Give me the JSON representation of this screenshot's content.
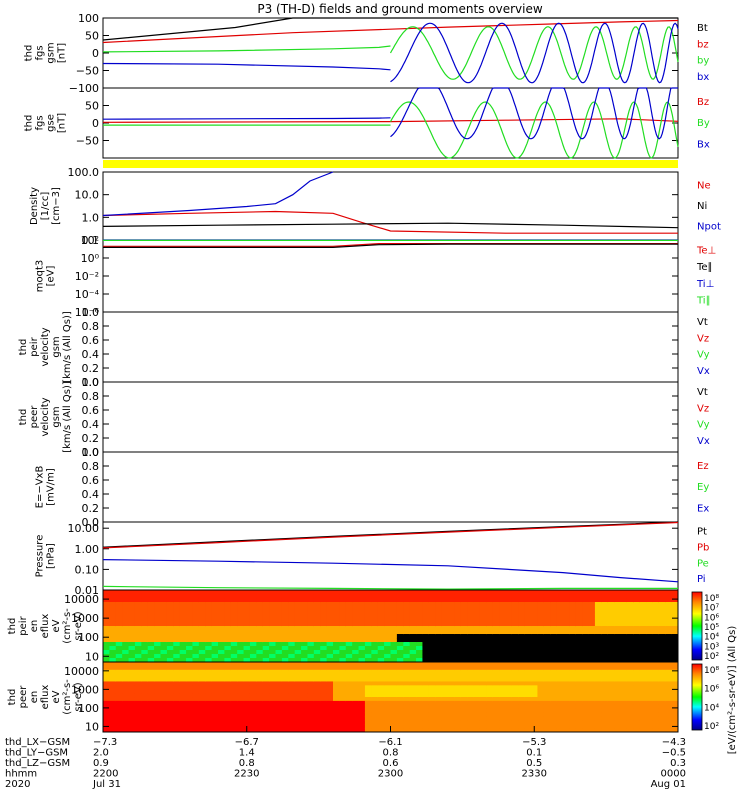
{
  "title": "P3 (TH-D) fields and ground moments overview",
  "colors": {
    "black": "#000000",
    "red": "#e00000",
    "green": "#22dd22",
    "blue": "#0000cc",
    "yellow": "#ffff00"
  },
  "chart_data": [
    {
      "panel": "fgs_gsm",
      "type": "line",
      "ylabel": [
        "thd",
        "fgs",
        "gsm",
        "[nT]"
      ],
      "ylim": [
        -100,
        100
      ],
      "scale": "linear",
      "ticks": [
        {
          "v": 100,
          "label": "100"
        },
        {
          "v": 50,
          "label": "50"
        },
        {
          "v": 0,
          "label": "0"
        },
        {
          "v": -50,
          "label": "−50"
        },
        {
          "v": -100,
          "label": "−100"
        }
      ],
      "legend": [
        {
          "label": "Bt",
          "color": "#000000"
        },
        {
          "label": "bz",
          "color": "#e00000"
        },
        {
          "label": "by",
          "color": "#22dd22"
        },
        {
          "label": "bx",
          "color": "#0000cc"
        }
      ],
      "series": [
        {
          "name": "Bt",
          "color": "#000000",
          "x": [
            0,
            0.23,
            0.33,
            1
          ],
          "y": [
            37,
            73,
            104,
            104
          ]
        },
        {
          "name": "bz",
          "color": "#e00000",
          "x": [
            0,
            0.33,
            0.5,
            0.6,
            0.7,
            0.8,
            0.9,
            1
          ],
          "y": [
            30,
            58,
            68,
            74,
            79,
            84,
            89,
            93
          ]
        },
        {
          "name": "by",
          "color": "#22dd22",
          "x": [
            0,
            0.2,
            0.4,
            0.48,
            0.5
          ],
          "y": [
            3,
            6,
            12,
            16,
            20
          ]
        },
        {
          "name": "bx",
          "color": "#0000cc",
          "x": [
            0,
            0.2,
            0.4,
            0.48,
            0.5
          ],
          "y": [
            -30,
            -32,
            -40,
            -45,
            -48
          ]
        }
      ]
    },
    {
      "panel": "fgs_gse",
      "type": "line",
      "ylabel": [
        "thd",
        "fgs",
        "gse",
        "[nT]"
      ],
      "ylim": [
        -100,
        100
      ],
      "scale": "linear",
      "ticks": [
        {
          "v": 50,
          "label": "50"
        },
        {
          "v": 0,
          "label": "0"
        },
        {
          "v": -50,
          "label": "−50"
        }
      ],
      "legend": [
        {
          "label": "Bz",
          "color": "#e00000"
        },
        {
          "label": "By",
          "color": "#22dd22"
        },
        {
          "label": "Bx",
          "color": "#0000cc"
        }
      ],
      "series": [
        {
          "name": "Bz",
          "color": "#e00000",
          "x": [
            0,
            0.5,
            0.7,
            0.9,
            1
          ],
          "y": [
            2,
            4,
            8,
            12,
            5
          ]
        },
        {
          "name": "By",
          "color": "#22dd22",
          "x": [
            0,
            0.2,
            0.4,
            0.48,
            0.5
          ],
          "y": [
            -6,
            -6,
            -6,
            -6,
            -6
          ]
        },
        {
          "name": "Bx",
          "color": "#0000cc",
          "x": [
            0,
            0.2,
            0.4,
            0.48,
            0.5
          ],
          "y": [
            11,
            12,
            13,
            14,
            15
          ]
        }
      ]
    },
    {
      "panel": "density",
      "type": "line",
      "ylabel": [
        "Density",
        "[1/cc]",
        "[cm−3]"
      ],
      "ylim": [
        0.1,
        100
      ],
      "scale": "log",
      "ticks": [
        {
          "v": 100,
          "label": "100.0"
        },
        {
          "v": 10,
          "label": "10.0"
        },
        {
          "v": 1,
          "label": "1.0"
        },
        {
          "v": 0.1,
          "label": "0.1"
        }
      ],
      "legend": [
        {
          "label": "Ne",
          "color": "#e00000"
        },
        {
          "label": "Ni",
          "color": "#000000"
        },
        {
          "label": "Npot",
          "color": "#0000cc"
        }
      ],
      "series": [
        {
          "name": "Ne",
          "color": "#e00000",
          "x": [
            0,
            0.15,
            0.3,
            0.4,
            0.45,
            0.5,
            0.7,
            0.9,
            1
          ],
          "y": [
            1.2,
            1.5,
            1.8,
            1.5,
            0.6,
            0.25,
            0.2,
            0.2,
            0.2
          ]
        },
        {
          "name": "Ni",
          "color": "#000000",
          "x": [
            0,
            0.2,
            0.4,
            0.6,
            0.8,
            1
          ],
          "y": [
            0.4,
            0.45,
            0.5,
            0.55,
            0.45,
            0.35
          ]
        },
        {
          "name": "Npot",
          "color": "#0000cc",
          "x": [
            0,
            0.15,
            0.25,
            0.3,
            0.33,
            0.36,
            0.4
          ],
          "y": [
            1.2,
            2,
            3,
            4,
            10,
            40,
            100
          ]
        }
      ]
    },
    {
      "panel": "temperature",
      "type": "line",
      "ylabel": [
        "moqt3",
        "[eV]"
      ],
      "ylim": [
        1e-06,
        100
      ],
      "scale": "log",
      "ticks": [
        {
          "v": 100,
          "label": "10²"
        },
        {
          "v": 1,
          "label": "10⁰"
        },
        {
          "v": 0.01,
          "label": "10⁻²"
        },
        {
          "v": 0.0001,
          "label": "10⁻⁴"
        },
        {
          "v": 1e-06,
          "label": "10⁻⁶"
        }
      ],
      "legend": [
        {
          "label": "Te⊥",
          "color": "#e00000"
        },
        {
          "label": "Te∥",
          "color": "#000000"
        },
        {
          "label": "Ti⊥",
          "color": "#0000cc"
        },
        {
          "label": "Ti∥",
          "color": "#22dd22"
        }
      ],
      "series": [
        {
          "name": "Te⊥",
          "color": "#e00000",
          "x": [
            0,
            0.4,
            0.48,
            0.6,
            1
          ],
          "y": [
            20,
            20,
            40,
            40,
            40
          ]
        },
        {
          "name": "Te∥",
          "color": "#000000",
          "x": [
            0,
            0.4,
            0.48,
            0.6,
            1
          ],
          "y": [
            15,
            15,
            30,
            35,
            35
          ]
        },
        {
          "name": "Ti⊥",
          "color": "#0000cc",
          "x": [
            0,
            1
          ],
          "y": [
            100,
            100
          ]
        },
        {
          "name": "Ti∥",
          "color": "#22dd22",
          "x": [
            0,
            1
          ],
          "y": [
            90,
            90
          ]
        }
      ]
    },
    {
      "panel": "peir_velocity",
      "type": "line",
      "ylabel": [
        "thd",
        "peir",
        "velocity",
        "gsm",
        "[km/s (All Qs)]"
      ],
      "ylim": [
        0,
        1
      ],
      "scale": "linear",
      "ticks": [
        {
          "v": 1,
          "label": "1.0"
        },
        {
          "v": 0.8,
          "label": "0.8"
        },
        {
          "v": 0.6,
          "label": "0.6"
        },
        {
          "v": 0.4,
          "label": "0.4"
        },
        {
          "v": 0.2,
          "label": "0.2"
        },
        {
          "v": 0,
          "label": "0.0"
        }
      ],
      "legend": [
        {
          "label": "Vt",
          "color": "#000000"
        },
        {
          "label": "Vz",
          "color": "#e00000"
        },
        {
          "label": "Vy",
          "color": "#22dd22"
        },
        {
          "label": "Vx",
          "color": "#0000cc"
        }
      ],
      "series": []
    },
    {
      "panel": "peer_velocity",
      "type": "line",
      "ylabel": [
        "thd",
        "peer",
        "velocity",
        "gsm",
        "[km/s (All Qs)]"
      ],
      "ylim": [
        0,
        1
      ],
      "scale": "linear",
      "ticks": [
        {
          "v": 1,
          "label": "1.0"
        },
        {
          "v": 0.8,
          "label": "0.8"
        },
        {
          "v": 0.6,
          "label": "0.6"
        },
        {
          "v": 0.4,
          "label": "0.4"
        },
        {
          "v": 0.2,
          "label": "0.2"
        },
        {
          "v": 0,
          "label": "0.0"
        }
      ],
      "legend": [
        {
          "label": "Vt",
          "color": "#000000"
        },
        {
          "label": "Vz",
          "color": "#e00000"
        },
        {
          "label": "Vy",
          "color": "#22dd22"
        },
        {
          "label": "Vx",
          "color": "#0000cc"
        }
      ],
      "series": []
    },
    {
      "panel": "efield",
      "type": "line",
      "ylabel": [
        "E=−VxB",
        "[mV/m]"
      ],
      "ylim": [
        0,
        1
      ],
      "scale": "linear",
      "ticks": [
        {
          "v": 1,
          "label": "1.0"
        },
        {
          "v": 0.8,
          "label": "0.8"
        },
        {
          "v": 0.6,
          "label": "0.6"
        },
        {
          "v": 0.4,
          "label": "0.4"
        },
        {
          "v": 0.2,
          "label": "0.2"
        },
        {
          "v": 0,
          "label": "0.0"
        }
      ],
      "legend": [
        {
          "label": "Ez",
          "color": "#e00000"
        },
        {
          "label": "Ey",
          "color": "#22dd22"
        },
        {
          "label": "Ex",
          "color": "#0000cc"
        }
      ],
      "series": []
    },
    {
      "panel": "pressure",
      "type": "line",
      "ylabel": [
        "Pressure",
        "[nPa]"
      ],
      "ylim": [
        0.01,
        20
      ],
      "scale": "log",
      "ticks": [
        {
          "v": 10,
          "label": "10.00"
        },
        {
          "v": 1,
          "label": "1.00"
        },
        {
          "v": 0.1,
          "label": "0.10"
        },
        {
          "v": 0.01,
          "label": "0.01"
        }
      ],
      "legend": [
        {
          "label": "Pt",
          "color": "#000000"
        },
        {
          "label": "Pb",
          "color": "#e00000"
        },
        {
          "label": "Pe",
          "color": "#22dd22"
        },
        {
          "label": "Pi",
          "color": "#0000cc"
        }
      ],
      "series": [
        {
          "name": "Pt",
          "color": "#000000",
          "x": [
            0,
            0.2,
            0.4,
            0.6,
            0.8,
            1
          ],
          "y": [
            1.2,
            2.2,
            4,
            7,
            12,
            20
          ]
        },
        {
          "name": "Pb",
          "color": "#e00000",
          "x": [
            0,
            0.2,
            0.4,
            0.6,
            0.8,
            1
          ],
          "y": [
            1.1,
            2.0,
            3.7,
            6.5,
            11,
            19
          ]
        },
        {
          "name": "Pe",
          "color": "#22dd22",
          "x": [
            0,
            0.2,
            0.4,
            0.6,
            0.8,
            1
          ],
          "y": [
            0.015,
            0.013,
            0.012,
            0.011,
            0.012,
            0.012
          ]
        },
        {
          "name": "Pi",
          "color": "#0000cc",
          "x": [
            0,
            0.2,
            0.4,
            0.6,
            0.8,
            0.9,
            1
          ],
          "y": [
            0.3,
            0.25,
            0.2,
            0.15,
            0.07,
            0.04,
            0.025
          ]
        }
      ]
    },
    {
      "panel": "peir_spectrogram",
      "type": "heatmap",
      "ylabel": [
        "thd",
        "peir",
        "en",
        "eflux",
        "eV",
        "(cm²-s-",
        "sr-eV)"
      ],
      "ylim": [
        5,
        30000
      ],
      "scale": "log",
      "ticks": [
        {
          "v": 10000,
          "label": "10000"
        },
        {
          "v": 1000,
          "label": "1000"
        },
        {
          "v": 100,
          "label": "100"
        },
        {
          "v": 10,
          "label": "10"
        }
      ],
      "colorbar_ticks": [
        "10⁸",
        "10⁷",
        "10⁶",
        "10⁵",
        "10⁴",
        "10³",
        "10²"
      ]
    },
    {
      "panel": "peer_spectrogram",
      "type": "heatmap",
      "ylabel": [
        "thd",
        "peer",
        "en",
        "eflux",
        "eV",
        "(cm²-s-",
        "sr-eV)"
      ],
      "ylim": [
        5,
        30000
      ],
      "scale": "log",
      "ticks": [
        {
          "v": 10000,
          "label": "10000"
        },
        {
          "v": 1000,
          "label": "1000"
        },
        {
          "v": 100,
          "label": "100"
        },
        {
          "v": 10,
          "label": "10"
        }
      ],
      "colorbar_ticks": [
        "10⁸",
        "10⁶",
        "10⁴",
        "10²"
      ]
    }
  ],
  "colorbar_unit": "[eV/(cm²-s-sr-eV)] (All Qs)",
  "x_axis": {
    "rows": [
      {
        "label": "thd_LX−GSM",
        "values": [
          "−7.3",
          "−6.7",
          "−6.1",
          "−5.3",
          "−4.3"
        ]
      },
      {
        "label": "thd_LY−GSM",
        "values": [
          "2.0",
          "1.4",
          "0.8",
          "0.1",
          "−0.5"
        ]
      },
      {
        "label": "thd_LZ−GSM",
        "values": [
          "0.9",
          "0.8",
          "0.6",
          "0.5",
          "0.3"
        ]
      },
      {
        "label": "hhmm",
        "values": [
          "2200",
          "2230",
          "2300",
          "2330",
          "0000"
        ]
      },
      {
        "label": "2020",
        "values": [
          "Jul 31",
          "",
          "",
          "",
          "Aug 01"
        ]
      }
    ]
  }
}
